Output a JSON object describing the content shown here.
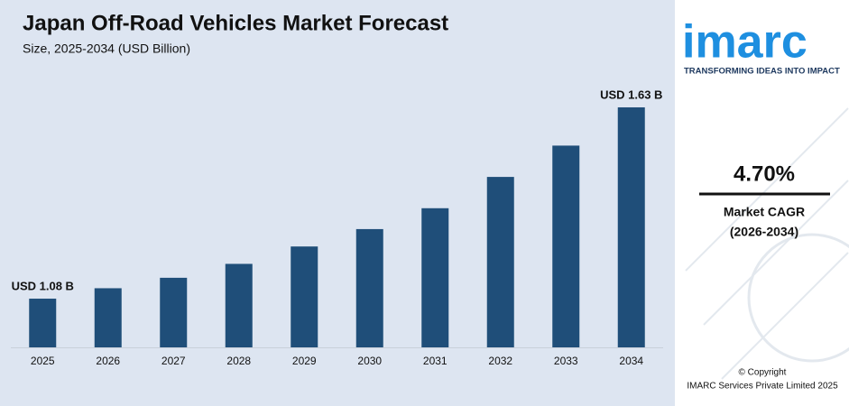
{
  "chart_data": {
    "type": "bar",
    "title": "Japan Off-Road Vehicles Market Forecast",
    "subtitle": "Size, 2025-2034 (USD Billion)",
    "categories": [
      "2025",
      "2026",
      "2027",
      "2028",
      "2029",
      "2030",
      "2031",
      "2032",
      "2033",
      "2034"
    ],
    "values": [
      1.08,
      1.11,
      1.14,
      1.18,
      1.23,
      1.28,
      1.34,
      1.43,
      1.52,
      1.63
    ],
    "value_labels": [
      "USD 1.08 B",
      null,
      null,
      null,
      null,
      null,
      null,
      null,
      null,
      "USD 1.63 B"
    ],
    "color": "#1f4e79",
    "ylim": [
      0.94,
      1.7
    ]
  },
  "sidebar": {
    "logo": "imarc",
    "tagline": "TRANSFORMING IDEAS INTO IMPACT",
    "cagr": "4.70%",
    "cagr_label": "Market CAGR",
    "cagr_period": "(2026-2034)",
    "copyright": "© Copyright",
    "company": "IMARC Services Private Limited 2025"
  }
}
